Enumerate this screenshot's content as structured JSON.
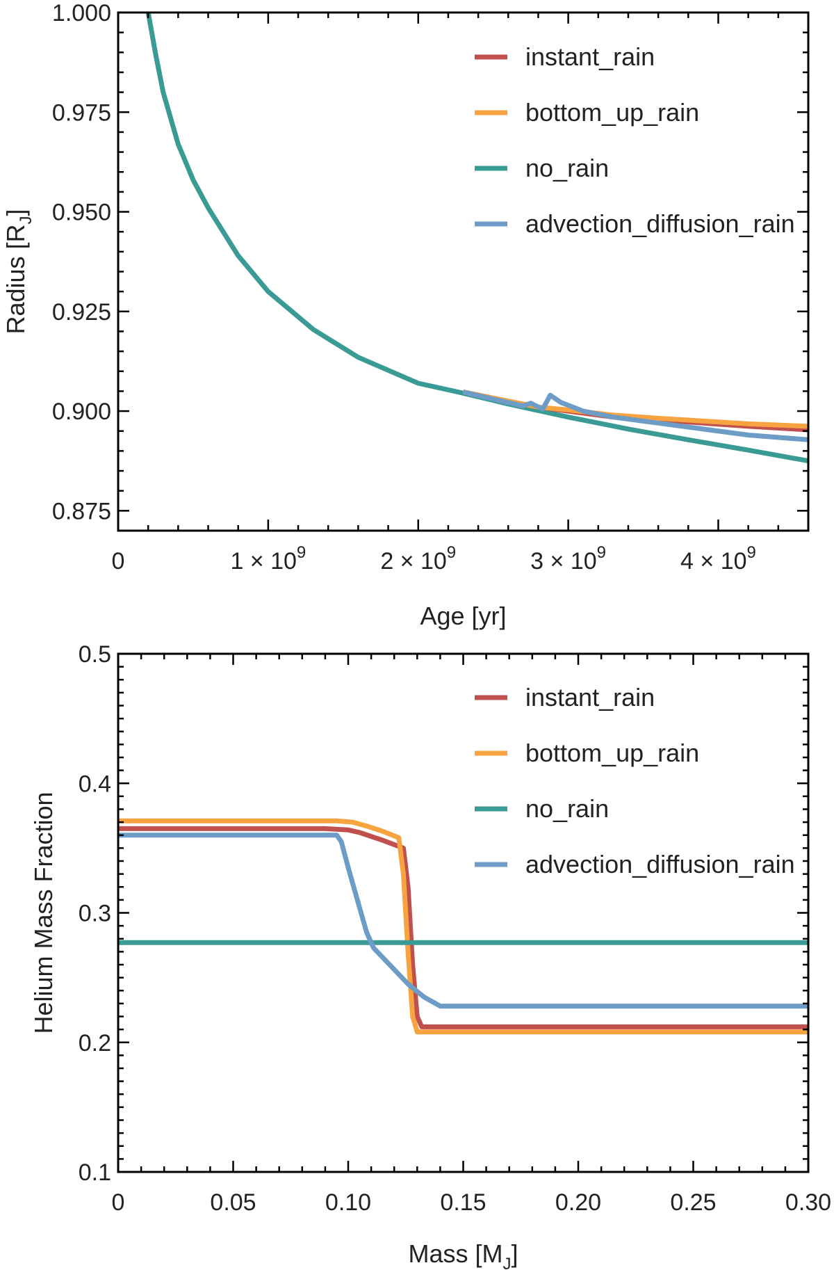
{
  "chart_data": [
    {
      "type": "line",
      "xlabel": "Age [yr]",
      "ylabel": "Radius [R_J]",
      "ylabel_main": "Radius [R",
      "ylabel_sub": "J",
      "ylabel_end": "]",
      "xlim": [
        0,
        4600000000
      ],
      "ylim": [
        0.87,
        1.0
      ],
      "x_ticks": [
        {
          "value": 0,
          "label": "0"
        },
        {
          "value": 1000000000,
          "label": "1 × 10",
          "exp": "9"
        },
        {
          "value": 2000000000,
          "label": "2 × 10",
          "exp": "9"
        },
        {
          "value": 3000000000,
          "label": "3 × 10",
          "exp": "9"
        },
        {
          "value": 4000000000,
          "label": "4 × 10",
          "exp": "9"
        }
      ],
      "y_ticks": [
        {
          "value": 0.875,
          "label": "0.875"
        },
        {
          "value": 0.9,
          "label": "0.900"
        },
        {
          "value": 0.925,
          "label": "0.925"
        },
        {
          "value": 0.95,
          "label": "0.950"
        },
        {
          "value": 0.975,
          "label": "0.975"
        },
        {
          "value": 1.0,
          "label": "1.000"
        }
      ],
      "legend": "top-right",
      "series": [
        {
          "name": "instant_rain",
          "color": "#c0504d",
          "x": [
            2300000000,
            2600000000,
            2800000000,
            3000000000,
            3300000000,
            3600000000,
            3900000000,
            4200000000,
            4600000000
          ],
          "y": [
            0.9048,
            0.9025,
            0.901,
            0.9,
            0.8985,
            0.8978,
            0.897,
            0.8962,
            0.8953
          ]
        },
        {
          "name": "bottom_up_rain",
          "color": "#f7a440",
          "x": [
            2300000000,
            2600000000,
            2800000000,
            3000000000,
            3300000000,
            3600000000,
            3900000000,
            4200000000,
            4600000000
          ],
          "y": [
            0.9048,
            0.9025,
            0.901,
            0.9003,
            0.899,
            0.8982,
            0.8975,
            0.8968,
            0.8962
          ]
        },
        {
          "name": "no_rain",
          "color": "#3a9a94",
          "x": [
            200000000,
            250000000,
            300000000,
            400000000,
            500000000,
            600000000,
            800000000,
            1000000000,
            1300000000,
            1600000000,
            2000000000,
            2300000000,
            2600000000,
            3000000000,
            3400000000,
            3800000000,
            4200000000,
            4600000000
          ],
          "y": [
            1.0,
            0.9895,
            0.98,
            0.967,
            0.958,
            0.951,
            0.939,
            0.93,
            0.9205,
            0.9135,
            0.907,
            0.9045,
            0.9018,
            0.8985,
            0.8955,
            0.8928,
            0.8902,
            0.8875
          ]
        },
        {
          "name": "advection_diffusion_rain",
          "color": "#6d9cc6",
          "x": [
            2300000000,
            2500000000,
            2700000000,
            2750000000,
            2830000000,
            2880000000,
            2950000000,
            3100000000,
            3300000000,
            3600000000,
            3900000000,
            4200000000,
            4600000000
          ],
          "y": [
            0.9048,
            0.903,
            0.9013,
            0.902,
            0.9005,
            0.904,
            0.9022,
            0.9,
            0.8985,
            0.897,
            0.8955,
            0.894,
            0.8928
          ]
        }
      ]
    },
    {
      "type": "line",
      "xlabel": "Mass [M_J]",
      "xlabel_main": "Mass [M",
      "xlabel_sub": "J",
      "xlabel_end": "]",
      "ylabel": "Helium Mass Fraction",
      "xlim": [
        0,
        0.3
      ],
      "ylim": [
        0.1,
        0.5
      ],
      "x_ticks": [
        {
          "value": 0,
          "label": "0"
        },
        {
          "value": 0.05,
          "label": "0.05"
        },
        {
          "value": 0.1,
          "label": "0.10"
        },
        {
          "value": 0.15,
          "label": "0.15"
        },
        {
          "value": 0.2,
          "label": "0.20"
        },
        {
          "value": 0.25,
          "label": "0.25"
        },
        {
          "value": 0.3,
          "label": "0.30"
        }
      ],
      "y_ticks": [
        {
          "value": 0.1,
          "label": "0.1"
        },
        {
          "value": 0.2,
          "label": "0.2"
        },
        {
          "value": 0.3,
          "label": "0.3"
        },
        {
          "value": 0.4,
          "label": "0.4"
        },
        {
          "value": 0.5,
          "label": "0.5"
        }
      ],
      "legend": "top-right",
      "series": [
        {
          "name": "instant_rain",
          "color": "#c0504d",
          "x": [
            0,
            0.09,
            0.1,
            0.105,
            0.115,
            0.124,
            0.126,
            0.128,
            0.13,
            0.132,
            0.3
          ],
          "y": [
            0.365,
            0.365,
            0.364,
            0.362,
            0.356,
            0.35,
            0.32,
            0.26,
            0.22,
            0.212,
            0.212
          ]
        },
        {
          "name": "bottom_up_rain",
          "color": "#f7a440",
          "x": [
            0,
            0.095,
            0.102,
            0.108,
            0.115,
            0.122,
            0.124,
            0.126,
            0.128,
            0.13,
            0.3
          ],
          "y": [
            0.371,
            0.371,
            0.37,
            0.367,
            0.363,
            0.358,
            0.33,
            0.27,
            0.22,
            0.208,
            0.208
          ]
        },
        {
          "name": "no_rain",
          "color": "#3a9a94",
          "x": [
            0,
            0.3
          ],
          "y": [
            0.277,
            0.277
          ]
        },
        {
          "name": "advection_diffusion_rain",
          "color": "#6d9cc6",
          "x": [
            0,
            0.095,
            0.097,
            0.1,
            0.104,
            0.108,
            0.111,
            0.118,
            0.126,
            0.133,
            0.14,
            0.3
          ],
          "y": [
            0.36,
            0.36,
            0.355,
            0.335,
            0.31,
            0.285,
            0.273,
            0.26,
            0.245,
            0.235,
            0.228,
            0.228
          ]
        }
      ]
    }
  ]
}
